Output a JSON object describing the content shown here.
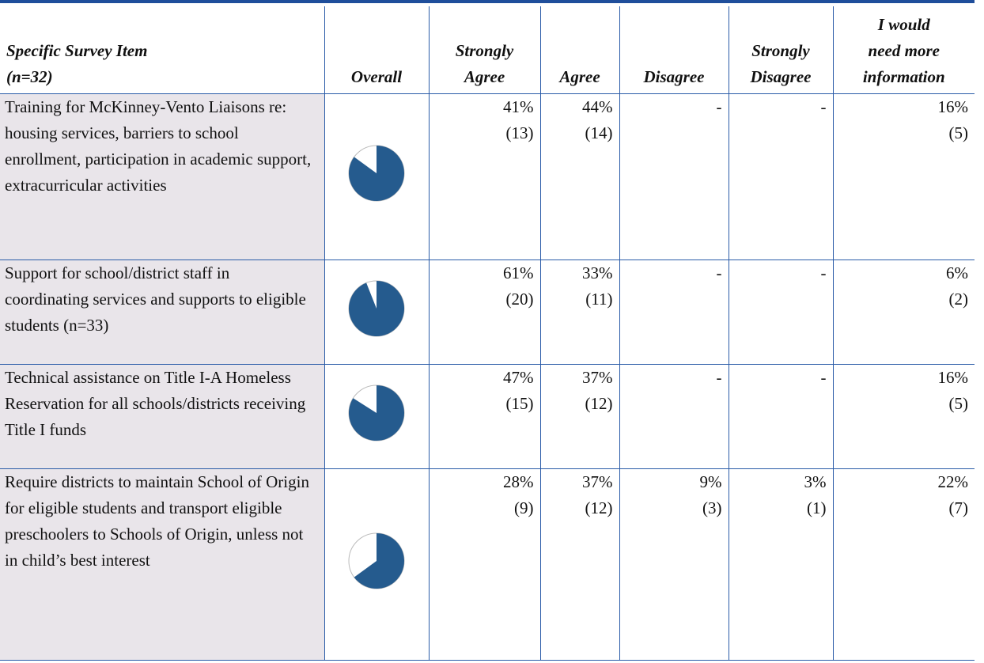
{
  "table": {
    "headers": [
      [
        "Specific Survey Item",
        "(n=32)"
      ],
      [
        "Overall"
      ],
      [
        "Strongly",
        "Agree"
      ],
      [
        "Agree"
      ],
      [
        "Disagree"
      ],
      [
        "Strongly",
        "Disagree"
      ],
      [
        "I would",
        "need more",
        "information"
      ]
    ],
    "rows": [
      {
        "item": "Training for McKinney-Vento Liaisons re: housing services, barriers to school enrollment, participation in academic support, extracurricular activities",
        "cells": [
          [
            "41%",
            "(13)"
          ],
          [
            "44%",
            "(14)"
          ],
          [
            "-"
          ],
          [
            "-"
          ],
          [
            "16%",
            "(5)"
          ]
        ]
      },
      {
        "item": "Support for school/district staff in coordinating services and supports to eligible students (n=33)",
        "cells": [
          [
            "61%",
            "(20)"
          ],
          [
            "33%",
            "(11)"
          ],
          [
            "-"
          ],
          [
            "-"
          ],
          [
            "6%",
            "(2)"
          ]
        ]
      },
      {
        "item": "Technical assistance on Title I-A Homeless Reservation for all schools/districts receiving Title I funds",
        "cells": [
          [
            "47%",
            "(15)"
          ],
          [
            "37%",
            "(12)"
          ],
          [
            "-"
          ],
          [
            "-"
          ],
          [
            "16%",
            "(5)"
          ]
        ]
      },
      {
        "item": "Require districts to maintain School of Origin for eligible students and transport eligible preschoolers to Schools of Origin, unless not in child’s best interest",
        "cells": [
          [
            "28%",
            "(9)"
          ],
          [
            "37%",
            "(12)"
          ],
          [
            "9%",
            "(3)"
          ],
          [
            "3%",
            "(1)"
          ],
          [
            "22%",
            "(7)"
          ]
        ]
      }
    ]
  }
}
